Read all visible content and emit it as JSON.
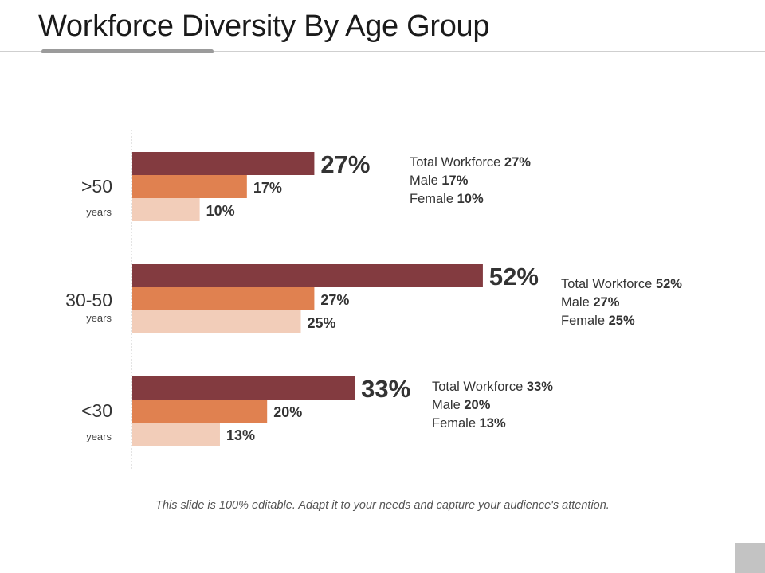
{
  "slide": {
    "title": "Workforce Diversity By Age Group",
    "footer": "This slide is 100% editable. Adapt it to your needs and capture your audience's attention."
  },
  "colors": {
    "total": "#833b40",
    "male": "#e08150",
    "female": "#f2cdb9",
    "axis": "#c9c9c9"
  },
  "chart_data": {
    "type": "bar",
    "orientation": "horizontal",
    "title": "Workforce Diversity By Age Group",
    "unit_suffix": "%",
    "xlim": [
      0,
      100
    ],
    "series_names": [
      "Total Workforce",
      "Male",
      "Female"
    ],
    "groups": [
      {
        "label": ">50",
        "sublabel": "years",
        "values": {
          "total": 27,
          "male": 17,
          "female": 10
        },
        "legend": [
          {
            "name": "Total Workforce",
            "value": "27%"
          },
          {
            "name": "Male",
            "value": "17%"
          },
          {
            "name": "Female",
            "value": "10%"
          }
        ]
      },
      {
        "label": "30-50",
        "sublabel": "years",
        "values": {
          "total": 52,
          "male": 27,
          "female": 25
        },
        "legend": [
          {
            "name": "Total Workforce",
            "value": "52%"
          },
          {
            "name": "Male",
            "value": "27%"
          },
          {
            "name": "Female",
            "value": "25%"
          }
        ]
      },
      {
        "label": "<30",
        "sublabel": "years",
        "values": {
          "total": 33,
          "male": 20,
          "female": 13
        },
        "legend": [
          {
            "name": "Total Workforce",
            "value": "33%"
          },
          {
            "name": "Male",
            "value": "20%"
          },
          {
            "name": "Female",
            "value": "13%"
          }
        ]
      }
    ]
  }
}
